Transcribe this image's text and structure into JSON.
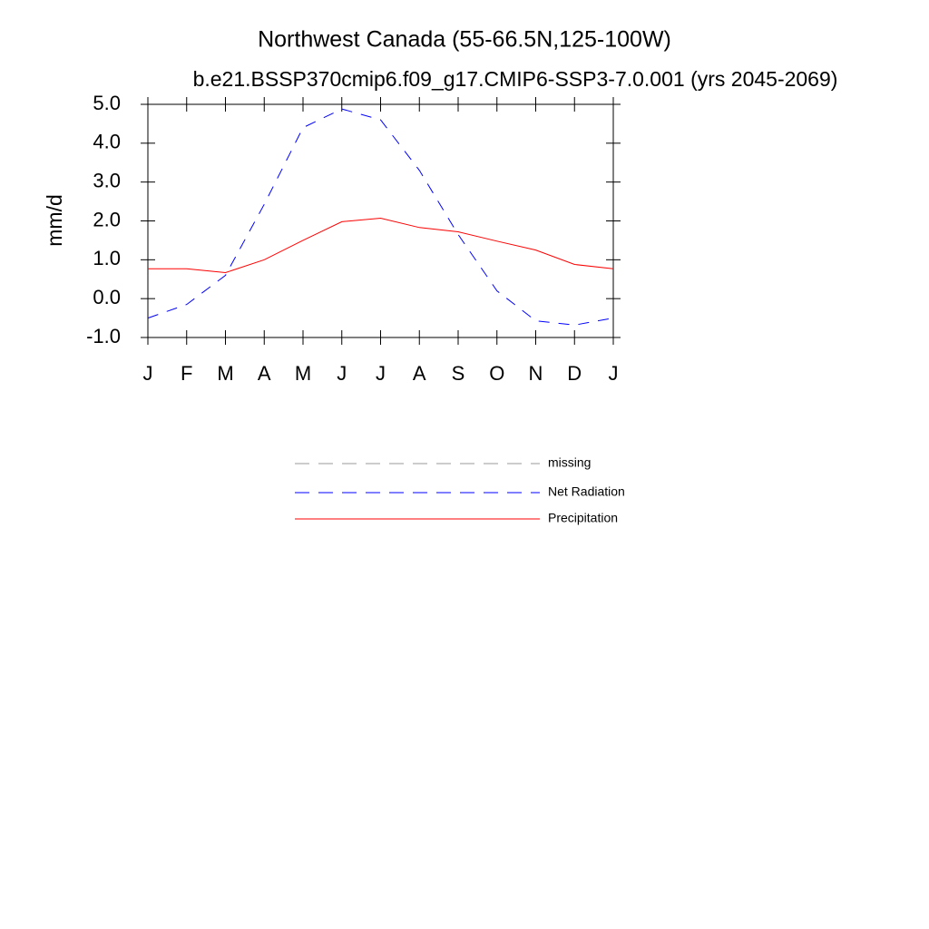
{
  "chart_data": {
    "type": "line",
    "title": "Northwest Canada (55-66.5N,125-100W)",
    "subtitle": "b.e21.BSSP370cmip6.f09_g17.CMIP6-SSP3-7.0.001 (yrs 2045-2069)",
    "y_label": "mm/d",
    "categories": [
      "J",
      "F",
      "M",
      "A",
      "M",
      "J",
      "J",
      "A",
      "S",
      "O",
      "N",
      "D",
      "J"
    ],
    "series": [
      {
        "name": "missing",
        "color": "#999999",
        "dash": true,
        "values": [
          null,
          null,
          null,
          null,
          null,
          null,
          null,
          null,
          null,
          null,
          null,
          null,
          null
        ]
      },
      {
        "name": "Net Radiation",
        "color": "#0000ff",
        "dash": true,
        "values": [
          -0.5,
          -0.15,
          0.6,
          2.43,
          4.4,
          4.88,
          4.6,
          3.3,
          1.65,
          0.2,
          -0.57,
          -0.68,
          -0.5
        ]
      },
      {
        "name": "Precipitation",
        "color": "#ff0000",
        "dash": false,
        "values": [
          0.77,
          0.77,
          0.67,
          1.0,
          1.5,
          1.98,
          2.07,
          1.83,
          1.72,
          1.48,
          1.25,
          0.88,
          0.77
        ]
      }
    ],
    "ylim": [
      -1,
      5
    ],
    "yticks": [
      {
        "value": -1,
        "label": "-1.0"
      },
      {
        "value": 0,
        "label": "0.0"
      },
      {
        "value": 1,
        "label": "1.0"
      },
      {
        "value": 2,
        "label": "2.0"
      },
      {
        "value": 3,
        "label": "3.0"
      },
      {
        "value": 4,
        "label": "4.0"
      },
      {
        "value": 5,
        "label": "5.0"
      }
    ],
    "grid": false
  }
}
